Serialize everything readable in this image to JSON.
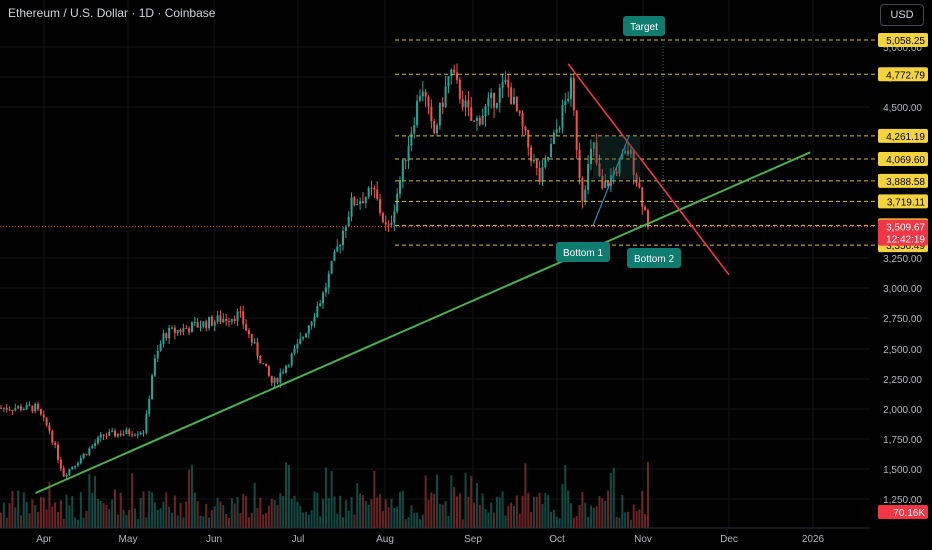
{
  "header": {
    "title": "Ethereum / U.S. Dollar · 1D · Coinbase",
    "currency_button": "USD"
  },
  "colors": {
    "up": "#26a69a",
    "down": "#ef5350",
    "trend_support": "#4caf50",
    "trend_resistance": "#f23645",
    "level": "#d4b93a",
    "level_label_bg": "#f5d33d",
    "price_label_bg": "#f23645",
    "annotation_bg": "#0f7c70"
  },
  "chart_data": {
    "type": "candlestick",
    "title": "Ethereum / U.S. Dollar · 1D · Coinbase",
    "x_ticks": [
      "Apr",
      "May",
      "Jun",
      "Jul",
      "Aug",
      "Sep",
      "Oct",
      "Nov",
      "Dec",
      "2026"
    ],
    "y_ticks": [
      "1,250.00",
      "1,500.00",
      "1,750.00",
      "2,000.00",
      "2,250.00",
      "2,500.00",
      "2,750.00",
      "3,000.00",
      "3,250.00",
      "4,500.00",
      "4,750.00",
      "5,000.00"
    ],
    "ylim": [
      1150,
      5200
    ],
    "price_levels": [
      {
        "value": 5058.25,
        "label": "5,058.25"
      },
      {
        "value": 4772.79,
        "label": "4,772.79"
      },
      {
        "value": 4261.19,
        "label": "4,261.19"
      },
      {
        "value": 4069.6,
        "label": "4,069.60"
      },
      {
        "value": 3888.58,
        "label": "3,888.58"
      },
      {
        "value": 3719.11,
        "label": "3,719.11"
      },
      {
        "value": 3519.58,
        "label": "3,519.58"
      },
      {
        "value": 3356.49,
        "label": "3,356.49"
      }
    ],
    "current_price": {
      "value": 3509.67,
      "label": "3,509.67",
      "countdown": "12:42:19"
    },
    "volume_label": "70.16K",
    "annotations": [
      "Target",
      "Bottom 1",
      "Bottom 2"
    ],
    "anchors": [
      {
        "month": "Mar 26",
        "price": 2010
      },
      {
        "month": "Apr 3",
        "price": 1820
      },
      {
        "month": "Apr 8",
        "price": 1450
      },
      {
        "month": "Apr 22",
        "price": 1780
      },
      {
        "month": "May 7",
        "price": 1820
      },
      {
        "month": "May 10",
        "price": 2350
      },
      {
        "month": "May 14",
        "price": 2620
      },
      {
        "month": "Jun 10",
        "price": 2780
      },
      {
        "month": "Jun 22",
        "price": 2200
      },
      {
        "month": "Jul 1",
        "price": 2520
      },
      {
        "month": "Jul 10",
        "price": 2950
      },
      {
        "month": "Jul 20",
        "price": 3700
      },
      {
        "month": "Jul 28",
        "price": 3800
      },
      {
        "month": "Aug 2",
        "price": 3450
      },
      {
        "month": "Aug 14",
        "price": 4700
      },
      {
        "month": "Aug 18",
        "price": 4250
      },
      {
        "month": "Aug 24",
        "price": 4800
      },
      {
        "month": "Sep 1",
        "price": 4350
      },
      {
        "month": "Sep 13",
        "price": 4700
      },
      {
        "month": "Sep 25",
        "price": 3880
      },
      {
        "month": "Oct 6",
        "price": 4680
      },
      {
        "month": "Oct 10",
        "price": 3750
      },
      {
        "month": "Oct 14",
        "price": 4200
      },
      {
        "month": "Oct 17",
        "price": 3800
      },
      {
        "month": "Oct 27",
        "price": 4150
      },
      {
        "month": "Nov 3",
        "price": 3520
      }
    ]
  }
}
